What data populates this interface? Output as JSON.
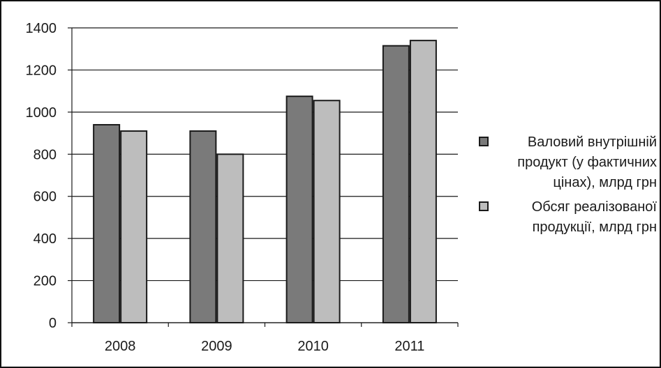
{
  "chart_data": {
    "type": "bar",
    "categories": [
      "2008",
      "2009",
      "2010",
      "2011"
    ],
    "series": [
      {
        "name": "Валовий внутрішній продукт (у фактичних цінах), млрд грн",
        "values": [
          940,
          910,
          1075,
          1315
        ],
        "color": "#7a7a7a"
      },
      {
        "name": "Обсяг реалізованої продукції, млрд грн",
        "values": [
          910,
          800,
          1055,
          1340
        ],
        "color": "#bdbdbd"
      }
    ],
    "y_ticks": [
      "0",
      "200",
      "400",
      "600",
      "800",
      "1000",
      "1200",
      "1400"
    ],
    "ylim": [
      0,
      1400
    ],
    "grid": true,
    "legend_position": "right",
    "legend": [
      {
        "label": "Валовий внутрішній\nпродукт (у фактичних\nцінах), млрд грн",
        "color": "#7a7a7a"
      },
      {
        "label": "Обсяг реалізованої\nпродукції, млрд грн",
        "color": "#bdbdbd"
      }
    ]
  }
}
